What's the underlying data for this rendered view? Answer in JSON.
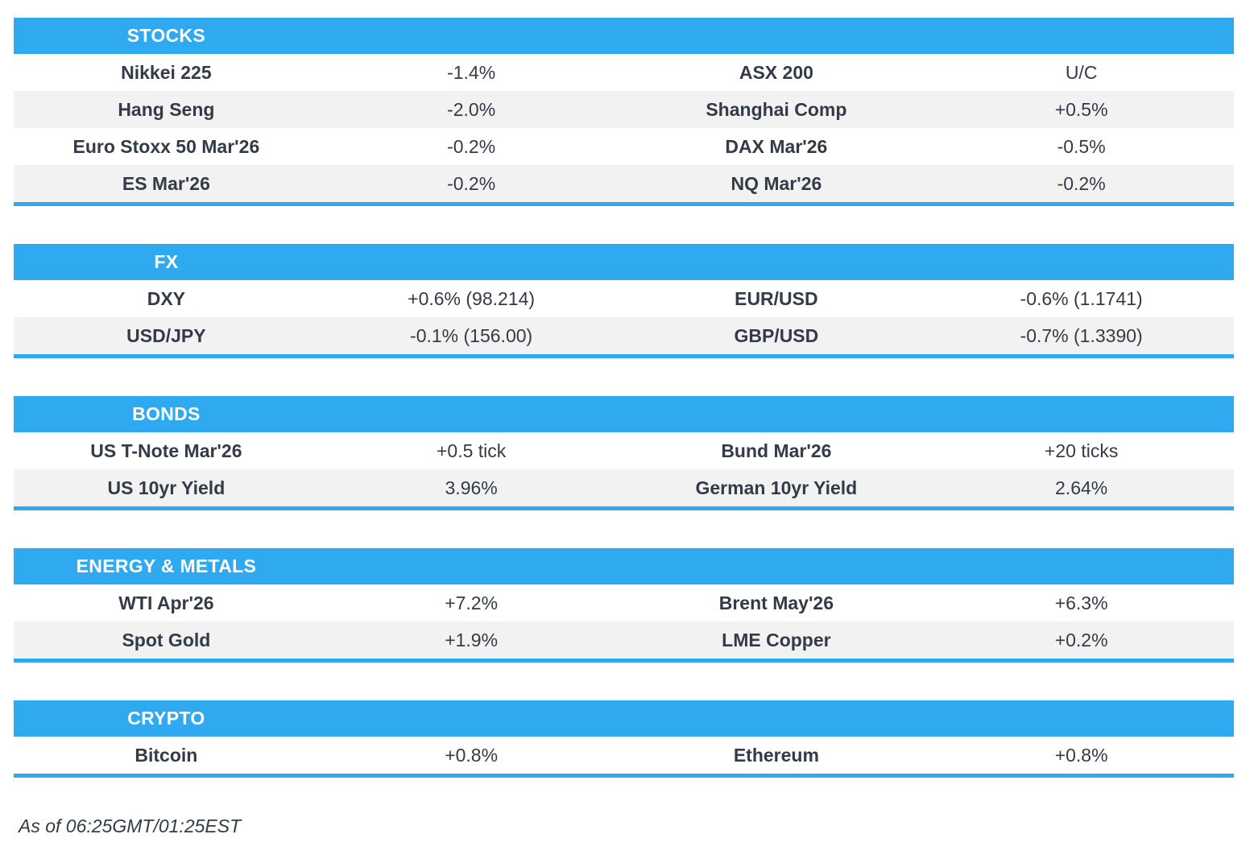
{
  "colors": {
    "accent_blue": "#2faaf0",
    "row_alt": "#f2f2f2",
    "text_color": "#333b47",
    "header_text": "#ffffff"
  },
  "sections": [
    {
      "title": "STOCKS",
      "rows": [
        [
          "Nikkei 225",
          "-1.4%",
          "ASX 200",
          "U/C"
        ],
        [
          "Hang Seng",
          "-2.0%",
          "Shanghai Comp",
          "+0.5%"
        ],
        [
          "Euro Stoxx 50 Mar'26",
          "-0.2%",
          "DAX Mar'26",
          "-0.5%"
        ],
        [
          "ES Mar'26",
          "-0.2%",
          "NQ Mar'26",
          "-0.2%"
        ]
      ]
    },
    {
      "title": "FX",
      "rows": [
        [
          "DXY",
          "+0.6% (98.214)",
          "EUR/USD",
          "-0.6% (1.1741)"
        ],
        [
          "USD/JPY",
          "-0.1% (156.00)",
          "GBP/USD",
          "-0.7% (1.3390)"
        ]
      ]
    },
    {
      "title": "BONDS",
      "rows": [
        [
          "US T-Note Mar'26",
          "+0.5 tick",
          "Bund Mar'26",
          "+20 ticks"
        ],
        [
          "US 10yr Yield",
          "3.96%",
          "German 10yr Yield",
          "2.64%"
        ]
      ]
    },
    {
      "title": "ENERGY & METALS",
      "rows": [
        [
          "WTI Apr'26",
          "+7.2%",
          "Brent May'26",
          "+6.3%"
        ],
        [
          "Spot Gold",
          "+1.9%",
          "LME Copper",
          "+0.2%"
        ]
      ]
    },
    {
      "title": "CRYPTO",
      "rows": [
        [
          "Bitcoin",
          "+0.8%",
          "Ethereum",
          "+0.8%"
        ]
      ]
    }
  ],
  "footer": {
    "as_of": "As of 06:25GMT/01:25EST"
  }
}
